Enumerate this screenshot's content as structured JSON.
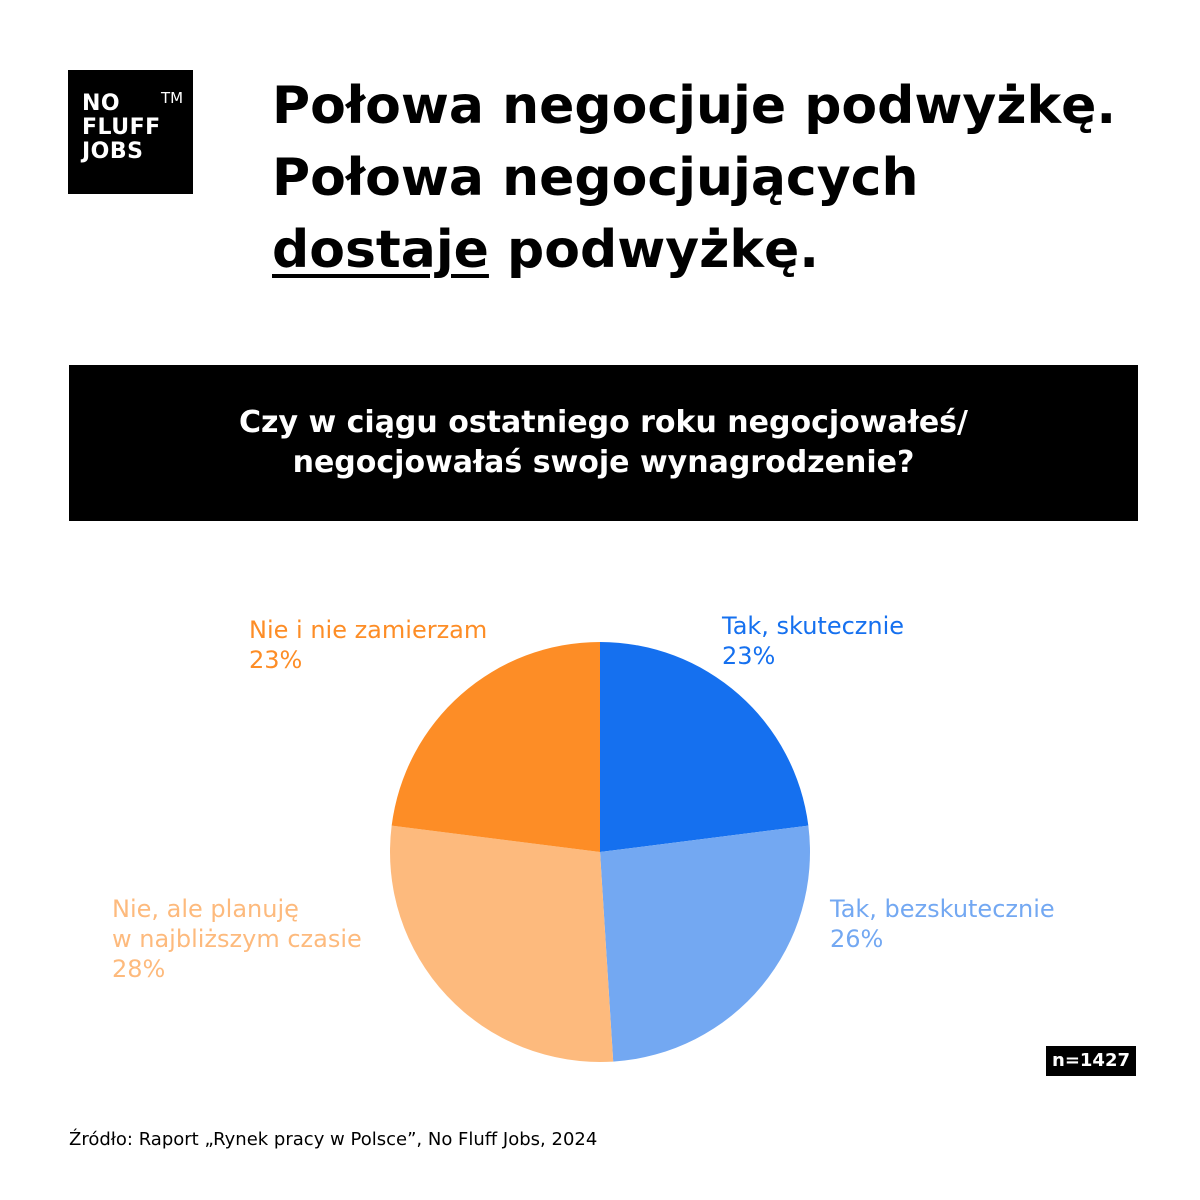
{
  "logo": {
    "line1": "NO",
    "line2": "FLUFF",
    "line3": "JOBS",
    "tm": "TM"
  },
  "headline": {
    "line1": "Połowa negocjuje podwyżkę.",
    "line2": "Połowa negocjujących",
    "line3_underlined": "dostaje",
    "line3_rest": " podwyżkę."
  },
  "question": {
    "line1": "Czy w ciągu ostatniego roku negocjowałeś/",
    "line2": "negocjowałaś swoje wynagrodzenie?"
  },
  "chart_data": {
    "type": "pie",
    "unit": "%",
    "slices": [
      {
        "name": "Tak, skutecznie",
        "label_lines": [
          "Tak, skutecznie"
        ],
        "value": 23,
        "value_label": "23%",
        "color": "#1570EF"
      },
      {
        "name": "Tak, bezskutecznie",
        "label_lines": [
          "Tak, bezskutecznie"
        ],
        "value": 26,
        "value_label": "26%",
        "color": "#73A8F2"
      },
      {
        "name": "Nie, ale planuję w najbliższym czasie",
        "label_lines": [
          "Nie, ale planuję",
          "w najbliższym czasie"
        ],
        "value": 28,
        "value_label": "28%",
        "color": "#FDBA7D"
      },
      {
        "name": "Nie i nie zamierzam",
        "label_lines": [
          "Nie i nie zamierzam"
        ],
        "value": 23,
        "value_label": "23%",
        "color": "#FD8D26"
      }
    ],
    "start": "top",
    "direction": "clockwise",
    "legend": "none"
  },
  "sample_size": "n=1427",
  "source": "Źródło: Raport „Rynek pracy w Polsce”, No Fluff Jobs, 2024"
}
